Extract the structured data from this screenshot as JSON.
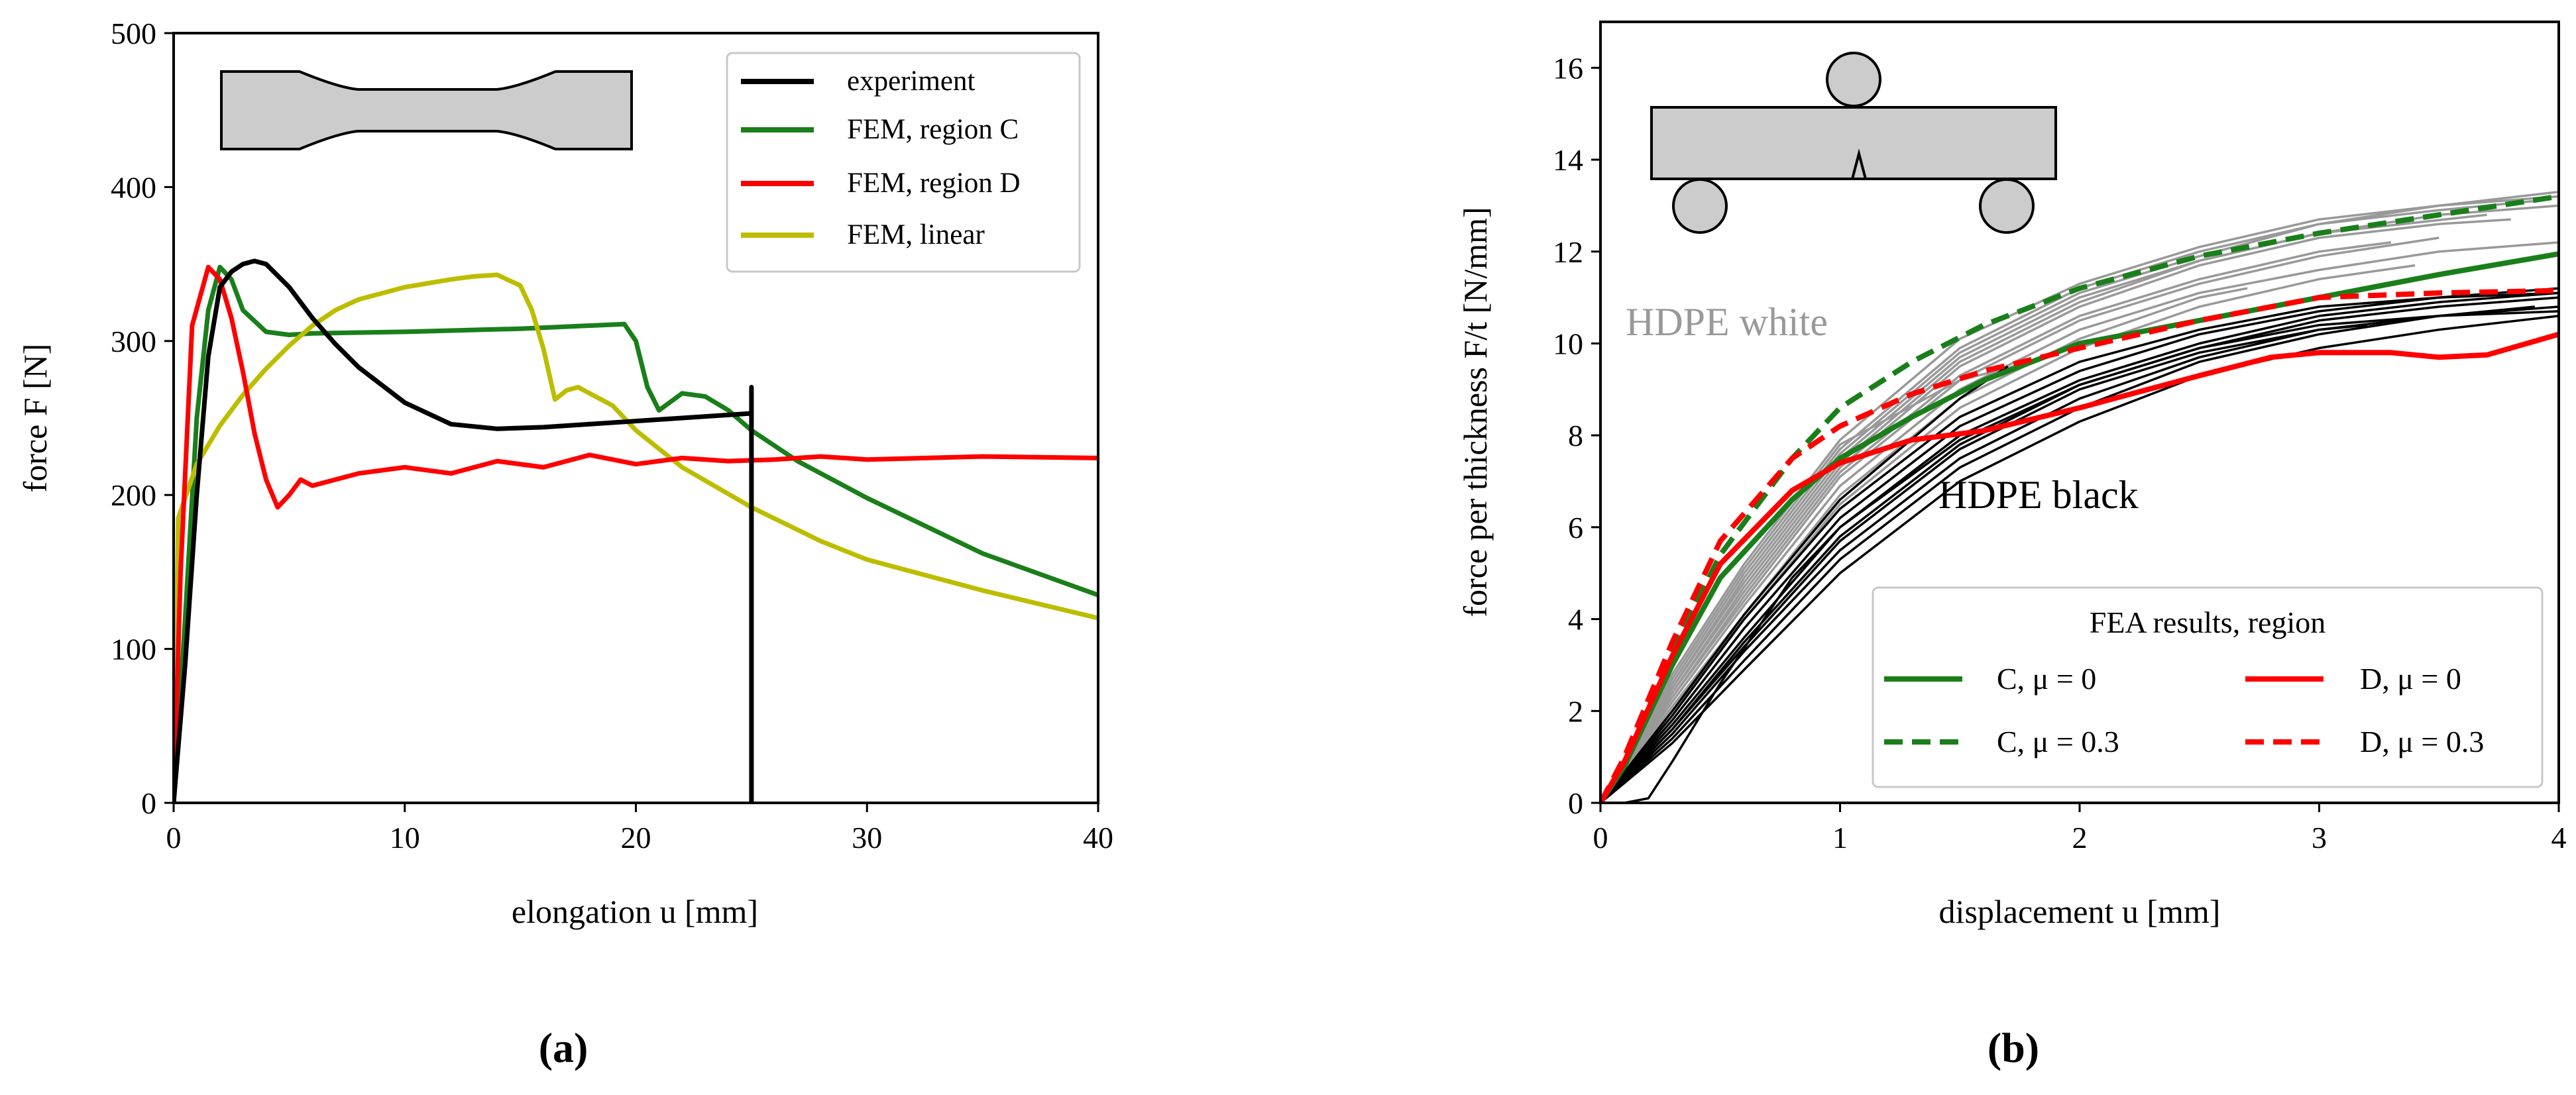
{
  "panel_labels": {
    "a": "(a)",
    "b": "(b)"
  },
  "chart_data": [
    {
      "type": "line",
      "panel": "a",
      "xlabel": "elongation u [mm]",
      "ylabel": "force F [N]",
      "xlim": [
        0,
        40
      ],
      "ylim": [
        0,
        500
      ],
      "xticks": [
        0,
        10,
        20,
        30,
        40
      ],
      "yticks": [
        0,
        100,
        200,
        300,
        400,
        500
      ],
      "legend_position": "top-right",
      "inset": "dog-bone tensile specimen",
      "colors": {
        "experiment": "#000000",
        "regionC": "#1a7f1a",
        "regionD": "#ff0000",
        "linear": "#bdbd00"
      },
      "series": [
        {
          "name": "experiment",
          "color": "#000000",
          "x": [
            0,
            0.5,
            1,
            1.5,
            2,
            2.5,
            3,
            3.5,
            4,
            5,
            6,
            7,
            8,
            10,
            12,
            14,
            16,
            18,
            20,
            22,
            24,
            25,
            25,
            25
          ],
          "y": [
            0,
            90,
            200,
            290,
            335,
            345,
            350,
            352,
            350,
            335,
            315,
            298,
            283,
            260,
            246,
            243,
            244,
            246,
            248,
            250,
            252,
            253,
            270,
            0
          ]
        },
        {
          "name": "FEM, region C",
          "color": "#1a7f1a",
          "x": [
            0,
            0.5,
            1,
            1.5,
            2,
            2.5,
            3,
            4,
            5,
            6,
            10,
            15,
            19.5,
            20,
            20.5,
            21,
            22,
            23,
            24,
            25,
            27,
            30,
            35,
            40
          ],
          "y": [
            0,
            120,
            250,
            320,
            348,
            340,
            320,
            306,
            304,
            305,
            306,
            308,
            311,
            300,
            270,
            255,
            266,
            264,
            255,
            242,
            222,
            198,
            162,
            135
          ]
        },
        {
          "name": "FEM, region D",
          "color": "#ff0000",
          "x": [
            0,
            0.3,
            0.8,
            1.5,
            2,
            2.5,
            3,
            3.5,
            4,
            4.5,
            5,
            5.5,
            6,
            7,
            8,
            10,
            12,
            14,
            16,
            18,
            20,
            22,
            24,
            26,
            28,
            30,
            35,
            40
          ],
          "y": [
            0,
            150,
            310,
            348,
            340,
            315,
            280,
            240,
            210,
            192,
            200,
            210,
            206,
            210,
            214,
            218,
            214,
            222,
            218,
            226,
            220,
            224,
            222,
            223,
            225,
            223,
            225,
            224
          ]
        },
        {
          "name": "FEM, linear",
          "color": "#bdbd00",
          "x": [
            0,
            0.2,
            1,
            2,
            3,
            4,
            5,
            6,
            7,
            8,
            10,
            12,
            13,
            14,
            15,
            15.5,
            16,
            16.5,
            17,
            17.5,
            18,
            19,
            20,
            22,
            25,
            28,
            30,
            35,
            40
          ],
          "y": [
            0,
            185,
            220,
            245,
            265,
            282,
            297,
            310,
            320,
            327,
            335,
            340,
            342,
            343,
            336,
            320,
            295,
            262,
            268,
            270,
            266,
            258,
            242,
            218,
            192,
            170,
            158,
            138,
            120
          ]
        }
      ]
    },
    {
      "type": "line",
      "panel": "b",
      "xlabel": "displacement u [mm]",
      "ylabel": "force per thickness F/t [N/mm]",
      "xlim": [
        0,
        4
      ],
      "ylim": [
        0,
        17
      ],
      "xticks": [
        0,
        1,
        2,
        3,
        4
      ],
      "yticks": [
        0,
        2,
        4,
        6,
        8,
        10,
        12,
        14,
        16
      ],
      "legend_position": "bottom-right",
      "legend_title": "FEA results, region",
      "inset": "three-point bending specimen",
      "annotations": {
        "white": "HDPE white",
        "black": "HDPE black"
      },
      "colors": {
        "gray": "#999999",
        "black": "#000000",
        "green": "#1a7f1a",
        "red": "#ff0000"
      },
      "experiments_white": [
        {
          "x": [
            0,
            0.3,
            0.6,
            1,
            1.5,
            2,
            2.5,
            3,
            3.5,
            4
          ],
          "y": [
            0,
            2.8,
            5.2,
            7.9,
            10.1,
            11.3,
            12.1,
            12.7,
            13.0,
            13.2
          ]
        },
        {
          "x": [
            0,
            0.3,
            0.6,
            1,
            1.5,
            2,
            2.5,
            3,
            3.5,
            4
          ],
          "y": [
            0,
            2.5,
            4.9,
            7.6,
            9.8,
            11.1,
            11.9,
            12.6,
            13.0,
            13.3
          ]
        },
        {
          "x": [
            0,
            0.3,
            0.6,
            1,
            1.5,
            2,
            2.5,
            3,
            3.5,
            3.8
          ],
          "y": [
            0,
            2.4,
            4.6,
            7.3,
            9.5,
            10.8,
            11.7,
            12.3,
            12.6,
            12.7
          ]
        },
        {
          "x": [
            0,
            0.3,
            0.6,
            1,
            1.5,
            2,
            2.5,
            3,
            3.3
          ],
          "y": [
            0,
            2.3,
            4.5,
            7.2,
            9.3,
            10.6,
            11.4,
            12.0,
            12.2
          ]
        },
        {
          "x": [
            0,
            0.3,
            0.6,
            1,
            1.5,
            2,
            2.5,
            3,
            3.5,
            3.9
          ],
          "y": [
            0,
            2.6,
            5.0,
            7.7,
            9.9,
            11.2,
            12.0,
            12.6,
            12.9,
            13.1
          ]
        },
        {
          "x": [
            0,
            0.3,
            0.6,
            1,
            1.5,
            2,
            2.5,
            3,
            3.5,
            4
          ],
          "y": [
            0,
            2.2,
            4.3,
            6.9,
            9.0,
            10.3,
            11.1,
            11.6,
            12.0,
            12.2
          ]
        },
        {
          "x": [
            0,
            0.3,
            0.6,
            1,
            1.5,
            2,
            2.5,
            2.7
          ],
          "y": [
            0,
            2.1,
            4.1,
            6.7,
            8.8,
            10.1,
            11.0,
            11.2
          ]
        },
        {
          "x": [
            0,
            0.3,
            0.6,
            1,
            1.5,
            2,
            2.5,
            3,
            3.4
          ],
          "y": [
            0,
            2.0,
            4.0,
            6.5,
            8.6,
            9.9,
            10.8,
            11.4,
            11.7
          ]
        },
        {
          "x": [
            0,
            0.3,
            0.6,
            1,
            1.5,
            2,
            2.5,
            3,
            3.5,
            4
          ],
          "y": [
            0,
            2.4,
            4.7,
            7.4,
            9.6,
            10.9,
            11.8,
            12.4,
            12.8,
            13.0
          ]
        },
        {
          "x": [
            0,
            0.3,
            0.6,
            1,
            1.5,
            1.8
          ],
          "y": [
            0,
            2.7,
            5.1,
            7.8,
            9.2,
            9.6
          ]
        },
        {
          "x": [
            0,
            0.3,
            0.6,
            1,
            1.5,
            2,
            2.5,
            3,
            3.5
          ],
          "y": [
            0,
            2.3,
            4.4,
            7.1,
            9.2,
            10.5,
            11.3,
            11.9,
            12.3
          ]
        },
        {
          "x": [
            0,
            0.3,
            0.6,
            1,
            1.5,
            2,
            2.5,
            3,
            3.7
          ],
          "y": [
            0,
            2.5,
            4.8,
            7.5,
            9.7,
            11.0,
            11.8,
            12.4,
            12.8
          ]
        }
      ],
      "experiments_black": [
        {
          "x": [
            0,
            0.1,
            0.2,
            0.3,
            0.5,
            0.8,
            1,
            1.5,
            2,
            2.5,
            3,
            3.5,
            4
          ],
          "y": [
            0,
            0,
            0.1,
            0.9,
            2.6,
            4.9,
            6.0,
            7.9,
            9.1,
            9.9,
            10.4,
            10.6,
            10.7
          ]
        },
        {
          "x": [
            0,
            0.3,
            0.6,
            1,
            1.5,
            2,
            2.5,
            3,
            3.5,
            4
          ],
          "y": [
            0,
            1.8,
            3.8,
            6.2,
            8.2,
            9.4,
            10.2,
            10.7,
            11.0,
            11.1
          ]
        },
        {
          "x": [
            0,
            0.3,
            0.6,
            1,
            1.5,
            2,
            2.5,
            3,
            3.5,
            4
          ],
          "y": [
            0,
            1.6,
            3.5,
            5.8,
            7.8,
            9.1,
            9.9,
            10.5,
            10.8,
            11.0
          ]
        },
        {
          "x": [
            0,
            0.3,
            0.6,
            1,
            1.5,
            2,
            2.5,
            3,
            3.5,
            4
          ],
          "y": [
            0,
            1.5,
            3.3,
            5.5,
            7.5,
            8.8,
            9.7,
            10.3,
            10.6,
            10.8
          ]
        },
        {
          "x": [
            0,
            0.3,
            0.6,
            1,
            1.5,
            2,
            2.5,
            3,
            3.5,
            4
          ],
          "y": [
            0,
            1.9,
            4.0,
            6.4,
            8.4,
            9.6,
            10.3,
            10.8,
            11.0,
            11.2
          ]
        },
        {
          "x": [
            0,
            0.3,
            0.6,
            1,
            1.5,
            2,
            2.5,
            3,
            3.5,
            3.9
          ],
          "y": [
            0,
            1.4,
            3.1,
            5.3,
            7.3,
            8.6,
            9.6,
            10.2,
            10.6,
            10.8
          ]
        },
        {
          "x": [
            0,
            0.3,
            0.6,
            1,
            1.5,
            2,
            2.5,
            3,
            3.5,
            4
          ],
          "y": [
            0,
            1.7,
            3.6,
            6.0,
            8.0,
            9.2,
            10.0,
            10.6,
            10.9,
            11.1
          ]
        },
        {
          "x": [
            0,
            0.3,
            0.6,
            1,
            1.5,
            2,
            2.5,
            3,
            3.2
          ],
          "y": [
            0,
            1.6,
            3.4,
            5.7,
            7.7,
            9.0,
            9.8,
            10.3,
            10.4
          ]
        },
        {
          "x": [
            0,
            0.3,
            0.6,
            1,
            1.5,
            1.7
          ],
          "y": [
            0,
            2.0,
            4.1,
            6.6,
            8.8,
            9.5
          ]
        },
        {
          "x": [
            0,
            0.3,
            0.6,
            1,
            1.5,
            2,
            2.5,
            3,
            3.5,
            4
          ],
          "y": [
            0,
            1.3,
            2.9,
            5.0,
            7.0,
            8.3,
            9.3,
            9.9,
            10.3,
            10.6
          ]
        }
      ],
      "legend_series": [
        {
          "label": "C, μ = 0",
          "color": "#1a7f1a",
          "dashed": false,
          "x": [
            0,
            0.1,
            0.3,
            0.5,
            0.8,
            1,
            1.3,
            1.6,
            2,
            2.5,
            3,
            3.5,
            4
          ],
          "y": [
            0,
            0.8,
            3.0,
            4.9,
            6.6,
            7.5,
            8.4,
            9.2,
            10.0,
            10.5,
            11.0,
            11.5,
            11.95
          ]
        },
        {
          "label": "C, μ = 0.3",
          "color": "#1a7f1a",
          "dashed": true,
          "x": [
            0,
            0.1,
            0.3,
            0.5,
            0.8,
            1,
            1.3,
            1.6,
            2,
            2.5,
            3,
            3.5,
            4
          ],
          "y": [
            0,
            0.9,
            3.3,
            5.4,
            7.5,
            8.6,
            9.6,
            10.4,
            11.2,
            11.9,
            12.4,
            12.8,
            13.2
          ]
        },
        {
          "label": "D, μ = 0",
          "color": "#ff0000",
          "dashed": false,
          "x": [
            0,
            0.1,
            0.3,
            0.5,
            0.8,
            1,
            1.3,
            1.6,
            2,
            2.5,
            2.8,
            3,
            3.3,
            3.5,
            3.7,
            4
          ],
          "y": [
            0,
            0.9,
            3.2,
            5.2,
            6.8,
            7.4,
            7.9,
            8.1,
            8.6,
            9.3,
            9.7,
            9.8,
            9.8,
            9.7,
            9.75,
            10.2
          ]
        },
        {
          "label": "D, μ = 0.3",
          "color": "#ff0000",
          "dashed": true,
          "x": [
            0,
            0.1,
            0.3,
            0.5,
            0.8,
            1,
            1.3,
            1.6,
            2,
            2.5,
            3,
            3.5,
            4
          ],
          "y": [
            0,
            1.0,
            3.5,
            5.7,
            7.5,
            8.2,
            8.9,
            9.4,
            9.9,
            10.5,
            11.0,
            11.1,
            11.15
          ]
        }
      ]
    }
  ]
}
